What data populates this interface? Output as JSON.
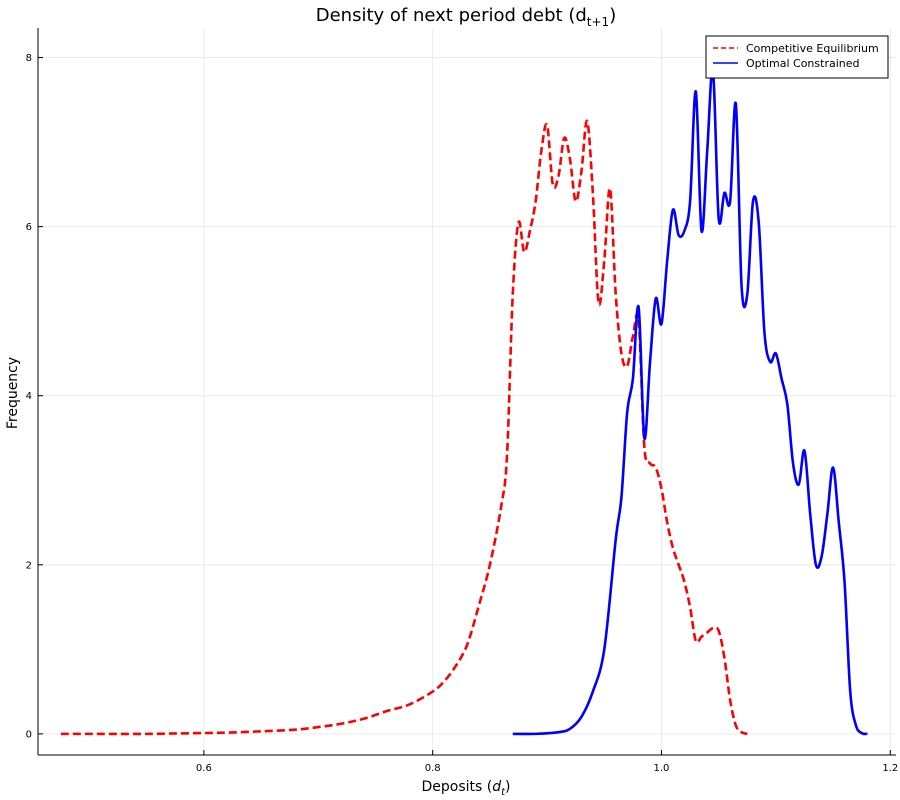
{
  "chart_data": {
    "type": "line",
    "title": "Density of next period debt (d",
    "title_subscript": "t+1",
    "title_close": ")",
    "xlabel": "Deposits (",
    "xlabel_var": "d",
    "xlabel_sub": "t",
    "xlabel_close": ")",
    "ylabel": "Frequency",
    "xlim": [
      0.455,
      1.205
    ],
    "ylim": [
      -0.25,
      8.35
    ],
    "xticks": [
      0.6,
      0.8,
      1.0,
      1.2
    ],
    "xtick_labels": [
      "0.6",
      "0.8",
      "1.0",
      "1.2"
    ],
    "yticks": [
      0,
      2,
      4,
      6,
      8
    ],
    "ytick_labels": [
      "0",
      "2",
      "4",
      "6",
      "8"
    ],
    "grid": true,
    "legend_position": "top-right",
    "series": [
      {
        "name": "Competitive Equilibrium",
        "color": "#ff0000",
        "style": "dashed",
        "x": [
          0.475,
          0.5,
          0.55,
          0.6,
          0.62,
          0.65,
          0.68,
          0.7,
          0.72,
          0.74,
          0.76,
          0.78,
          0.8,
          0.81,
          0.82,
          0.83,
          0.84,
          0.85,
          0.86,
          0.865,
          0.87,
          0.875,
          0.88,
          0.885,
          0.89,
          0.895,
          0.9,
          0.905,
          0.91,
          0.915,
          0.92,
          0.925,
          0.93,
          0.935,
          0.94,
          0.945,
          0.95,
          0.955,
          0.96,
          0.965,
          0.97,
          0.975,
          0.98,
          0.985,
          0.99,
          0.995,
          1.0,
          1.005,
          1.01,
          1.015,
          1.02,
          1.025,
          1.03,
          1.035,
          1.04,
          1.045,
          1.05,
          1.055,
          1.06,
          1.065,
          1.07,
          1.075
        ],
        "y": [
          0.0,
          0.0,
          0.0,
          0.01,
          0.015,
          0.03,
          0.05,
          0.08,
          0.12,
          0.18,
          0.27,
          0.35,
          0.5,
          0.62,
          0.8,
          1.05,
          1.5,
          2.0,
          2.7,
          3.3,
          5.2,
          6.05,
          5.7,
          5.95,
          6.3,
          6.9,
          7.2,
          6.5,
          6.6,
          7.05,
          6.8,
          6.3,
          6.65,
          7.25,
          6.4,
          5.1,
          5.6,
          6.45,
          5.2,
          4.5,
          4.35,
          4.7,
          4.9,
          3.4,
          3.2,
          3.15,
          2.9,
          2.5,
          2.2,
          2.0,
          1.8,
          1.5,
          1.1,
          1.15,
          1.2,
          1.25,
          1.22,
          0.9,
          0.4,
          0.1,
          0.02,
          0.0
        ]
      },
      {
        "name": "Optimal Constrained",
        "color": "#0000ff",
        "style": "solid",
        "x": [
          0.87,
          0.89,
          0.91,
          0.92,
          0.93,
          0.94,
          0.95,
          0.96,
          0.965,
          0.97,
          0.975,
          0.98,
          0.985,
          0.99,
          0.995,
          1.0,
          1.005,
          1.01,
          1.015,
          1.02,
          1.025,
          1.03,
          1.035,
          1.04,
          1.045,
          1.05,
          1.055,
          1.06,
          1.065,
          1.07,
          1.075,
          1.08,
          1.085,
          1.09,
          1.095,
          1.1,
          1.105,
          1.11,
          1.115,
          1.12,
          1.125,
          1.13,
          1.135,
          1.14,
          1.145,
          1.15,
          1.155,
          1.16,
          1.165,
          1.17,
          1.175,
          1.18
        ],
        "y": [
          0.0,
          0.0,
          0.02,
          0.06,
          0.2,
          0.5,
          1.0,
          2.3,
          2.8,
          3.8,
          4.2,
          5.05,
          3.5,
          4.4,
          5.15,
          4.85,
          5.6,
          6.2,
          5.9,
          5.95,
          6.3,
          7.6,
          5.95,
          6.9,
          7.85,
          6.1,
          6.4,
          6.3,
          7.45,
          5.3,
          5.2,
          6.3,
          6.05,
          4.75,
          4.4,
          4.5,
          4.2,
          3.9,
          3.2,
          2.95,
          3.35,
          2.6,
          2.0,
          2.1,
          2.6,
          3.15,
          2.5,
          1.8,
          0.5,
          0.1,
          0.01,
          0.0
        ]
      }
    ]
  }
}
